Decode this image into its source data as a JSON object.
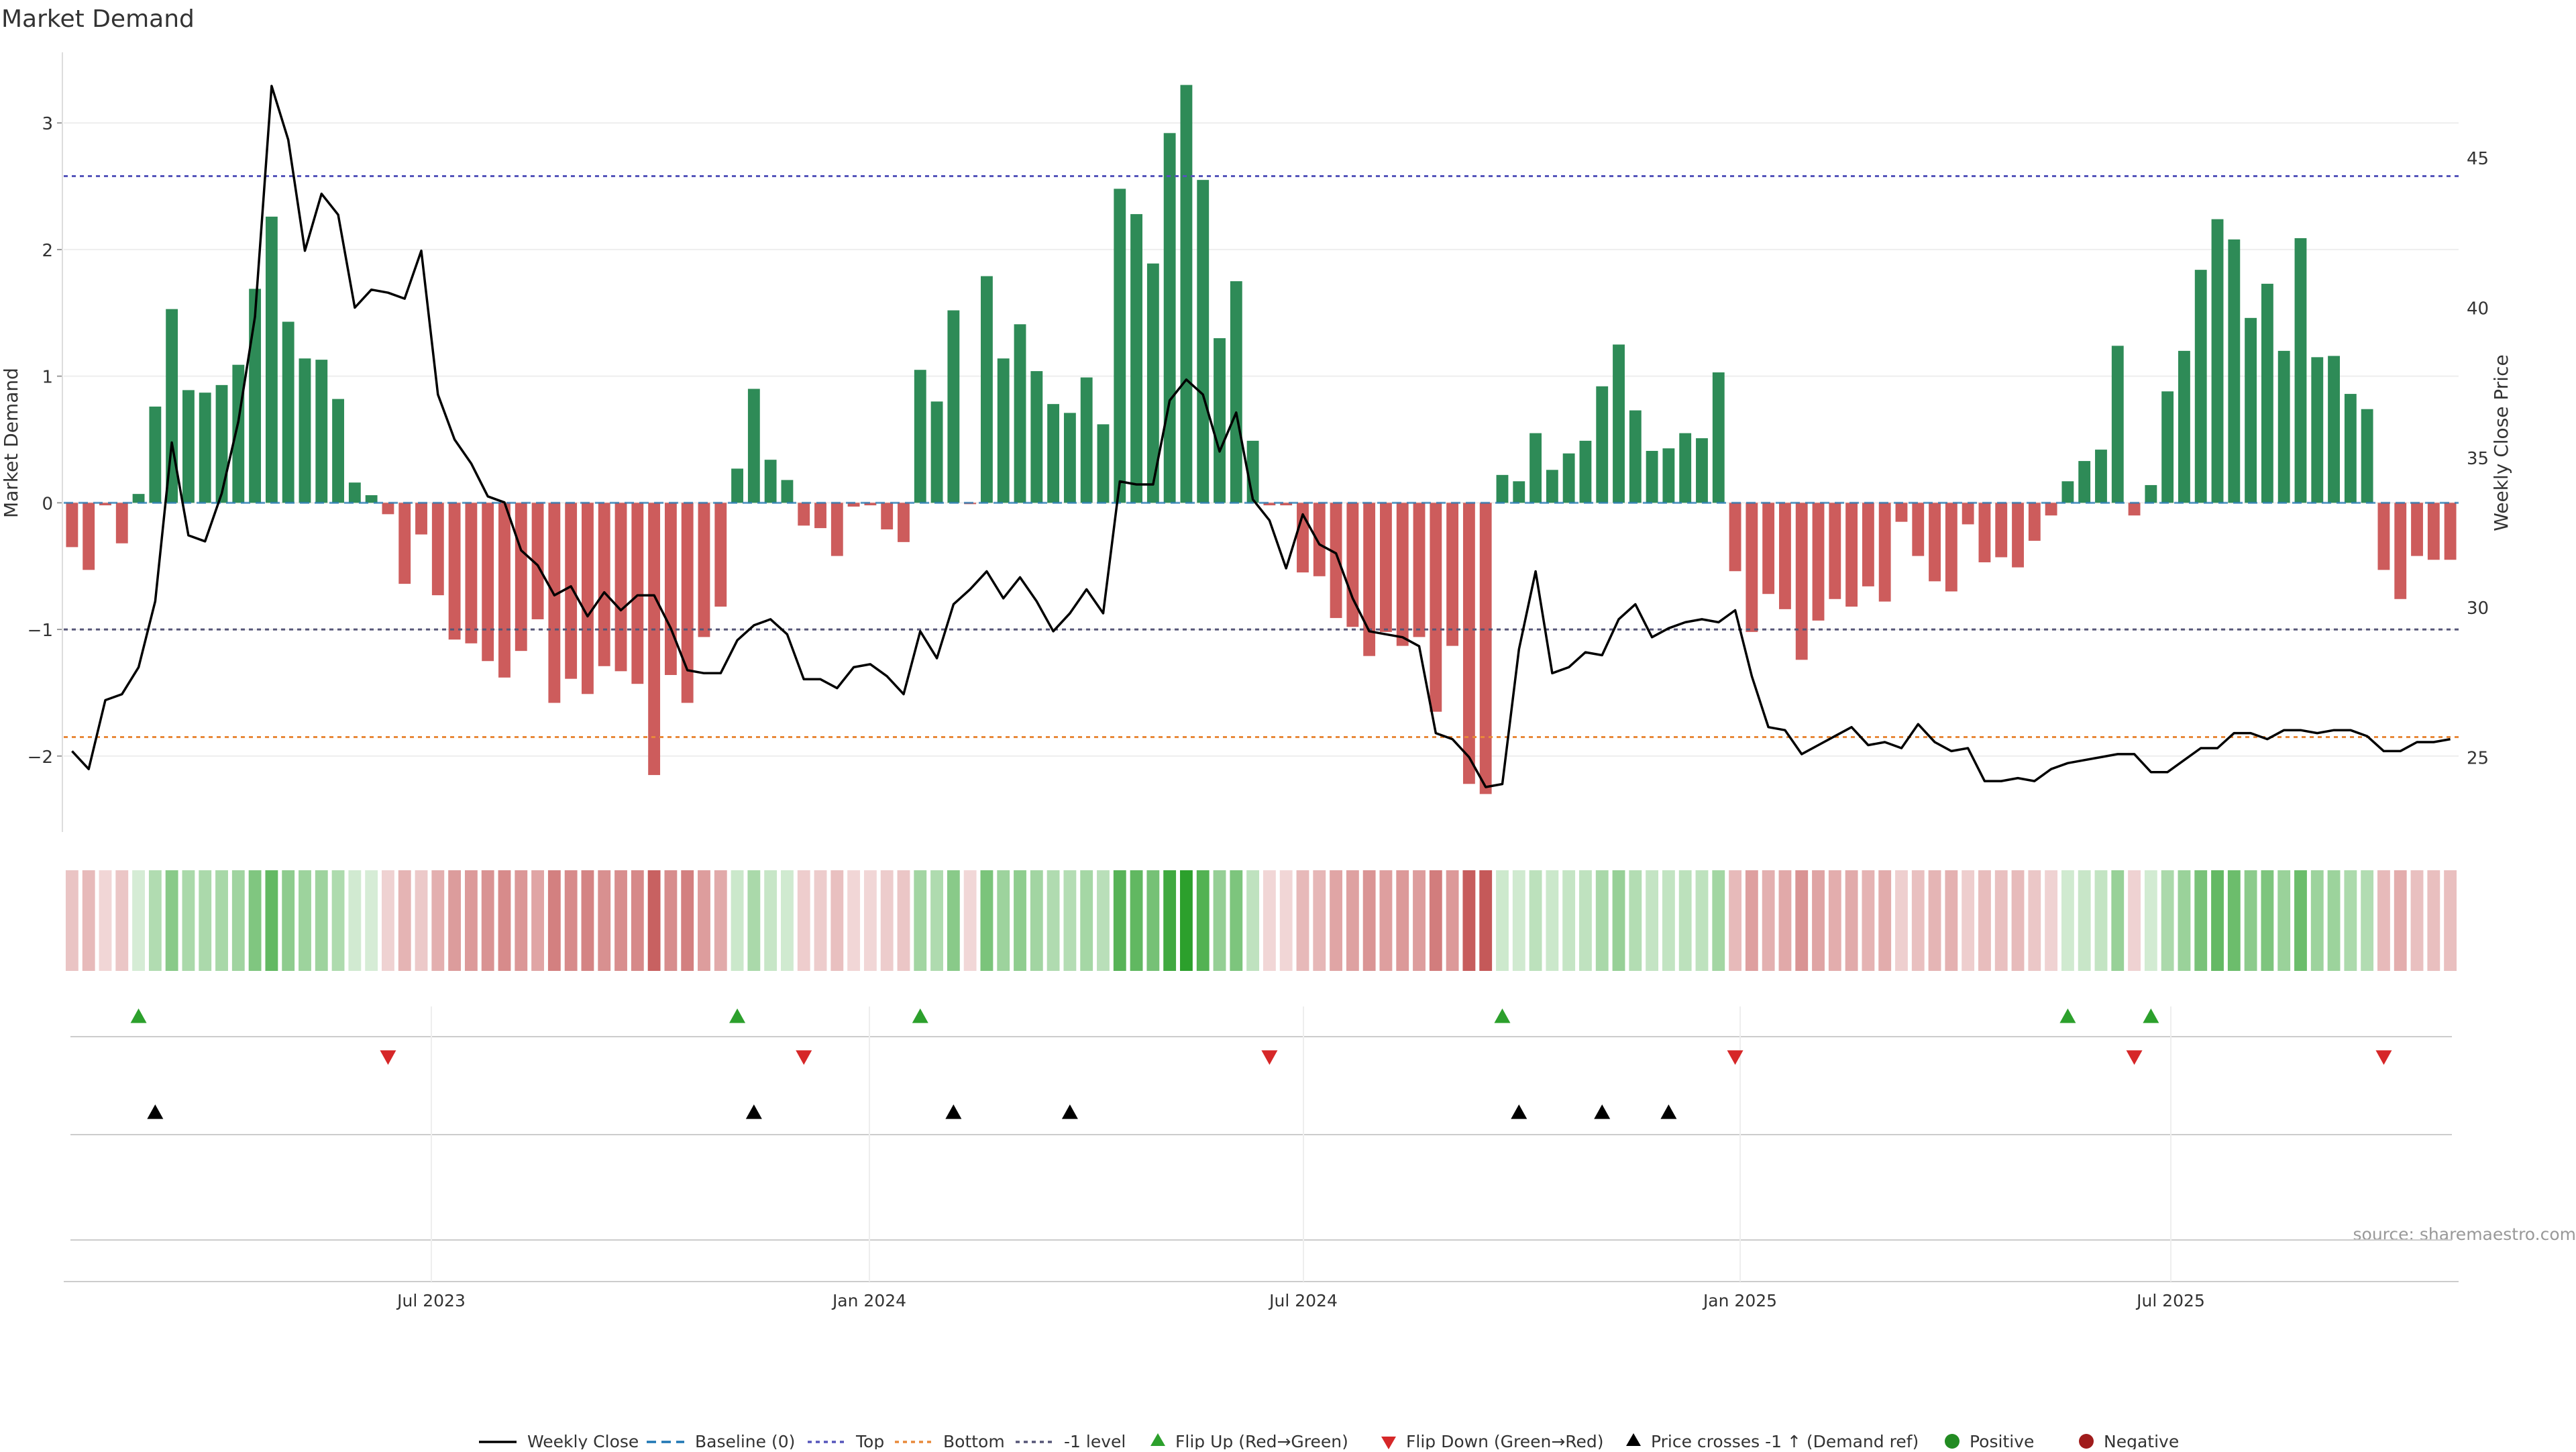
{
  "chart_data": {
    "type": "bar",
    "title": "Market Demand",
    "ylabel": "Market Demand",
    "y2label": "Weekly Close Price",
    "ylim": [
      -2.6,
      3.6
    ],
    "y2lim": [
      22.5,
      48.7
    ],
    "yticks": [
      "3",
      "2",
      "1",
      "0",
      "−1",
      "−2"
    ],
    "y2ticks": [
      "45",
      "40",
      "35",
      "30",
      "25"
    ],
    "xticks": [
      "Jul 2023",
      "Jan 2024",
      "Jul 2024",
      "Jan 2025",
      "Jul 2025"
    ],
    "source": "source: sharemaestro.com",
    "colors": {
      "positive": "#2e8b57",
      "negative": "#cd5c5c",
      "price": "#000000",
      "top": "#5555bb",
      "bottom": "#e8893a",
      "minus_one": "#555577",
      "flip_up": "#2ca02c",
      "flip_down": "#d62728"
    },
    "reference_lines": {
      "top": 2.58,
      "bottom": -1.85,
      "minus_one": -1.0,
      "baseline": 0
    },
    "demand": [
      -0.35,
      -0.53,
      -0.02,
      -0.32,
      0.07,
      0.76,
      1.53,
      0.89,
      0.87,
      0.93,
      1.09,
      1.69,
      2.26,
      1.43,
      1.14,
      1.13,
      0.82,
      0.16,
      0.06,
      -0.09,
      -0.64,
      -0.25,
      -0.73,
      -1.08,
      -1.11,
      -1.25,
      -1.38,
      -1.17,
      -0.92,
      -1.58,
      -1.39,
      -1.51,
      -1.29,
      -1.33,
      -1.43,
      -2.15,
      -1.36,
      -1.58,
      -1.06,
      -0.82,
      0.27,
      0.9,
      0.34,
      0.18,
      -0.18,
      -0.2,
      -0.42,
      -0.03,
      -0.02,
      -0.21,
      -0.31,
      1.05,
      0.8,
      1.52,
      -0.01,
      1.79,
      1.14,
      1.41,
      1.04,
      0.78,
      0.71,
      0.99,
      0.62,
      2.48,
      2.28,
      1.89,
      2.92,
      3.3,
      2.55,
      1.3,
      1.75,
      0.49,
      -0.02,
      -0.02,
      -0.55,
      -0.58,
      -0.91,
      -0.98,
      -1.21,
      -1.02,
      -1.13,
      -1.06,
      -1.65,
      -1.13,
      -2.22,
      -2.3,
      0.22,
      0.17,
      0.55,
      0.26,
      0.39,
      0.49,
      0.92,
      1.25,
      0.73,
      0.41,
      0.43,
      0.55,
      0.51,
      1.03,
      -0.54,
      -1.02,
      -0.72,
      -0.84,
      -1.24,
      -0.93,
      -0.76,
      -0.82,
      -0.66,
      -0.78,
      -0.15,
      -0.42,
      -0.62,
      -0.7,
      -0.17,
      -0.47,
      -0.43,
      -0.51,
      -0.3,
      -0.1,
      0.17,
      0.33,
      0.42,
      1.24,
      -0.1,
      0.14,
      0.88,
      1.2,
      1.84,
      2.24,
      2.08,
      1.46,
      1.73,
      1.2,
      2.09,
      1.15,
      1.16,
      0.86,
      0.74,
      -0.53,
      -0.76,
      -0.42,
      -0.45,
      -0.45
    ],
    "price": [
      25.2,
      24.6,
      26.9,
      27.1,
      28.0,
      30.2,
      35.5,
      32.4,
      32.2,
      33.8,
      36.2,
      39.7,
      47.4,
      45.6,
      41.9,
      43.8,
      43.1,
      40.0,
      40.6,
      40.5,
      40.3,
      41.9,
      37.1,
      35.6,
      34.8,
      33.7,
      33.5,
      31.9,
      31.4,
      30.4,
      30.7,
      29.7,
      30.5,
      29.9,
      30.4,
      30.4,
      29.3,
      27.9,
      27.8,
      27.8,
      28.9,
      29.4,
      29.6,
      29.1,
      27.6,
      27.6,
      27.3,
      28.0,
      28.1,
      27.7,
      27.1,
      29.2,
      28.3,
      30.1,
      30.6,
      31.2,
      30.3,
      31.0,
      30.2,
      29.2,
      29.8,
      30.6,
      29.8,
      34.2,
      34.1,
      34.1,
      36.9,
      37.6,
      37.1,
      35.2,
      36.5,
      33.6,
      32.9,
      31.3,
      33.1,
      32.1,
      31.8,
      30.3,
      29.2,
      29.1,
      29.0,
      28.7,
      25.8,
      25.6,
      25.0,
      24.0,
      24.1,
      28.6,
      31.2,
      27.8,
      28.0,
      28.5,
      28.4,
      29.6,
      30.1,
      29.0,
      29.3,
      29.5,
      29.6,
      29.5,
      29.9,
      27.7,
      26.0,
      25.9,
      25.1,
      25.4,
      25.7,
      26.0,
      25.4,
      25.5,
      25.3,
      26.1,
      25.5,
      25.2,
      25.3,
      24.2,
      24.2,
      24.3,
      24.2,
      24.6,
      24.8,
      24.9,
      25.0,
      25.1,
      25.1,
      24.5,
      24.5,
      24.9,
      25.3,
      25.3,
      25.8,
      25.8,
      25.6,
      25.9,
      25.9,
      25.8,
      25.9,
      25.9,
      25.7,
      25.2,
      25.2,
      25.5,
      25.5,
      25.6
    ],
    "flip_up_weeks": [
      4,
      40,
      51,
      86,
      120,
      125
    ],
    "flip_down_weeks": [
      19,
      44,
      72,
      100,
      124,
      139
    ],
    "price_cross_weeks": [
      5,
      41,
      53,
      60,
      87,
      92,
      96
    ],
    "legend": [
      "Weekly Close",
      "Baseline (0)",
      "Top",
      "Bottom",
      "-1 level",
      "Flip Up (Red→Green)",
      "Flip Down (Green→Red)",
      "Price crosses -1 ↑ (Demand ref)",
      "Positive",
      "Negative"
    ]
  }
}
